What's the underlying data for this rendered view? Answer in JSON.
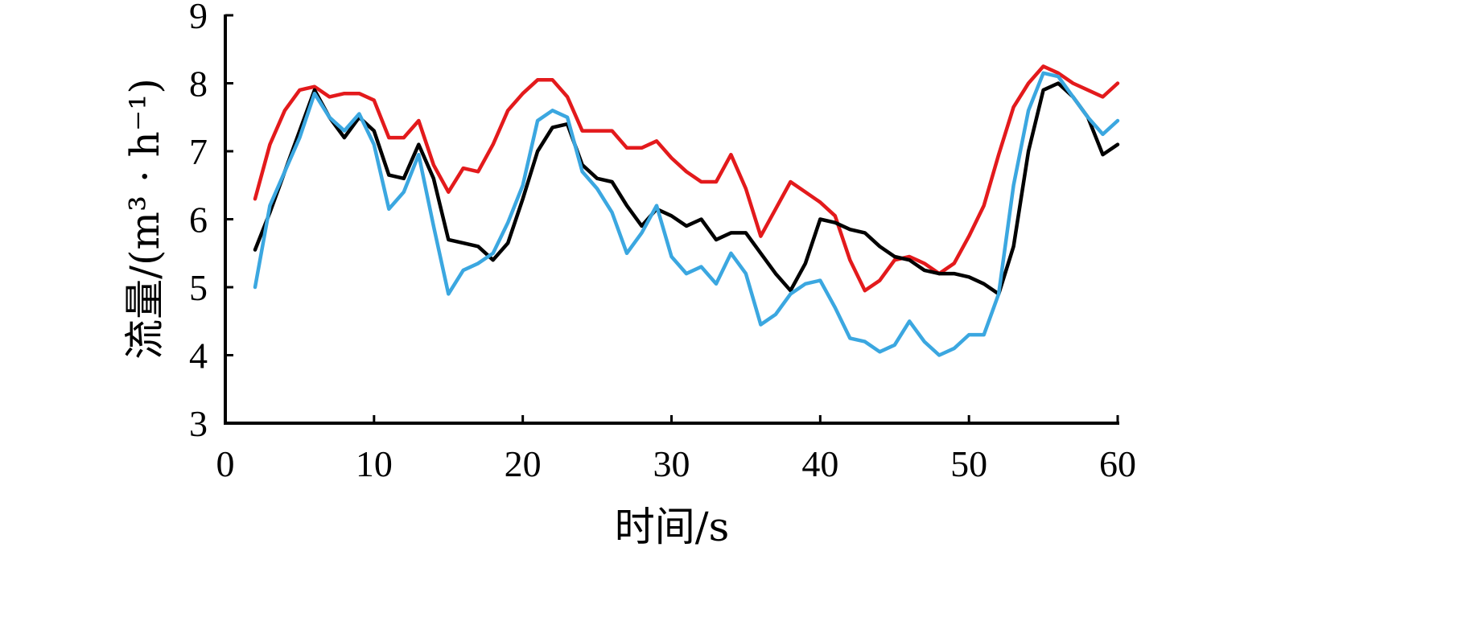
{
  "chart_data": {
    "type": "line",
    "title": "",
    "xlabel": "时间/s",
    "ylabel": "流量/(m³ · h⁻¹)",
    "xlim": [
      0,
      60
    ],
    "ylim": [
      3,
      9
    ],
    "xticks": [
      0,
      10,
      20,
      30,
      40,
      50,
      60
    ],
    "yticks": [
      3,
      4,
      5,
      6,
      7,
      8,
      9
    ],
    "grid": false,
    "legend": "none",
    "x": [
      2,
      3,
      4,
      5,
      6,
      7,
      8,
      9,
      10,
      11,
      12,
      13,
      14,
      15,
      16,
      17,
      18,
      19,
      20,
      21,
      22,
      23,
      24,
      25,
      26,
      27,
      28,
      29,
      30,
      31,
      32,
      33,
      34,
      35,
      36,
      37,
      38,
      39,
      40,
      41,
      42,
      43,
      44,
      45,
      46,
      47,
      48,
      49,
      50,
      51,
      52,
      53,
      54,
      55,
      56,
      57,
      58,
      59,
      60
    ],
    "series": [
      {
        "color": "#e31a1c",
        "values": [
          6.3,
          7.1,
          7.6,
          7.9,
          7.95,
          7.8,
          7.85,
          7.85,
          7.75,
          7.2,
          7.2,
          7.45,
          6.8,
          6.4,
          6.75,
          6.7,
          7.1,
          7.6,
          7.85,
          8.05,
          8.05,
          7.8,
          7.3,
          7.3,
          7.3,
          7.05,
          7.05,
          7.15,
          6.9,
          6.7,
          6.55,
          6.55,
          6.95,
          6.45,
          5.75,
          6.15,
          6.55,
          6.4,
          6.25,
          6.05,
          5.4,
          4.95,
          5.1,
          5.4,
          5.45,
          5.35,
          5.2,
          5.35,
          5.75,
          6.2,
          6.95,
          7.65,
          8.0,
          8.25,
          8.15,
          8.0,
          7.9,
          7.8,
          8.0
        ]
      },
      {
        "color": "#000000",
        "values": [
          5.55,
          6.1,
          6.7,
          7.3,
          7.9,
          7.5,
          7.2,
          7.5,
          7.3,
          6.65,
          6.6,
          7.1,
          6.6,
          5.7,
          5.65,
          5.6,
          5.4,
          5.65,
          6.3,
          7.0,
          7.35,
          7.4,
          6.8,
          6.6,
          6.55,
          6.2,
          5.9,
          6.15,
          6.05,
          5.9,
          6.0,
          5.7,
          5.8,
          5.8,
          5.5,
          5.2,
          4.95,
          5.35,
          6.0,
          5.95,
          5.85,
          5.8,
          5.6,
          5.45,
          5.4,
          5.25,
          5.2,
          5.2,
          5.15,
          5.05,
          4.9,
          5.6,
          7.0,
          7.9,
          8.0,
          7.8,
          7.5,
          6.95,
          7.1
        ]
      },
      {
        "color": "#3ba7e0",
        "values": [
          5.0,
          6.2,
          6.7,
          7.2,
          7.85,
          7.5,
          7.3,
          7.55,
          7.1,
          6.15,
          6.4,
          6.95,
          5.9,
          4.9,
          5.25,
          5.35,
          5.5,
          5.95,
          6.5,
          7.45,
          7.6,
          7.5,
          6.7,
          6.45,
          6.1,
          5.5,
          5.8,
          6.2,
          5.45,
          5.2,
          5.3,
          5.05,
          5.5,
          5.2,
          4.45,
          4.6,
          4.9,
          5.05,
          5.1,
          4.7,
          4.25,
          4.2,
          4.05,
          4.15,
          4.5,
          4.2,
          4.0,
          4.1,
          4.3,
          4.3,
          4.9,
          6.5,
          7.6,
          8.15,
          8.1,
          7.8,
          7.5,
          7.25,
          7.45
        ]
      }
    ]
  }
}
